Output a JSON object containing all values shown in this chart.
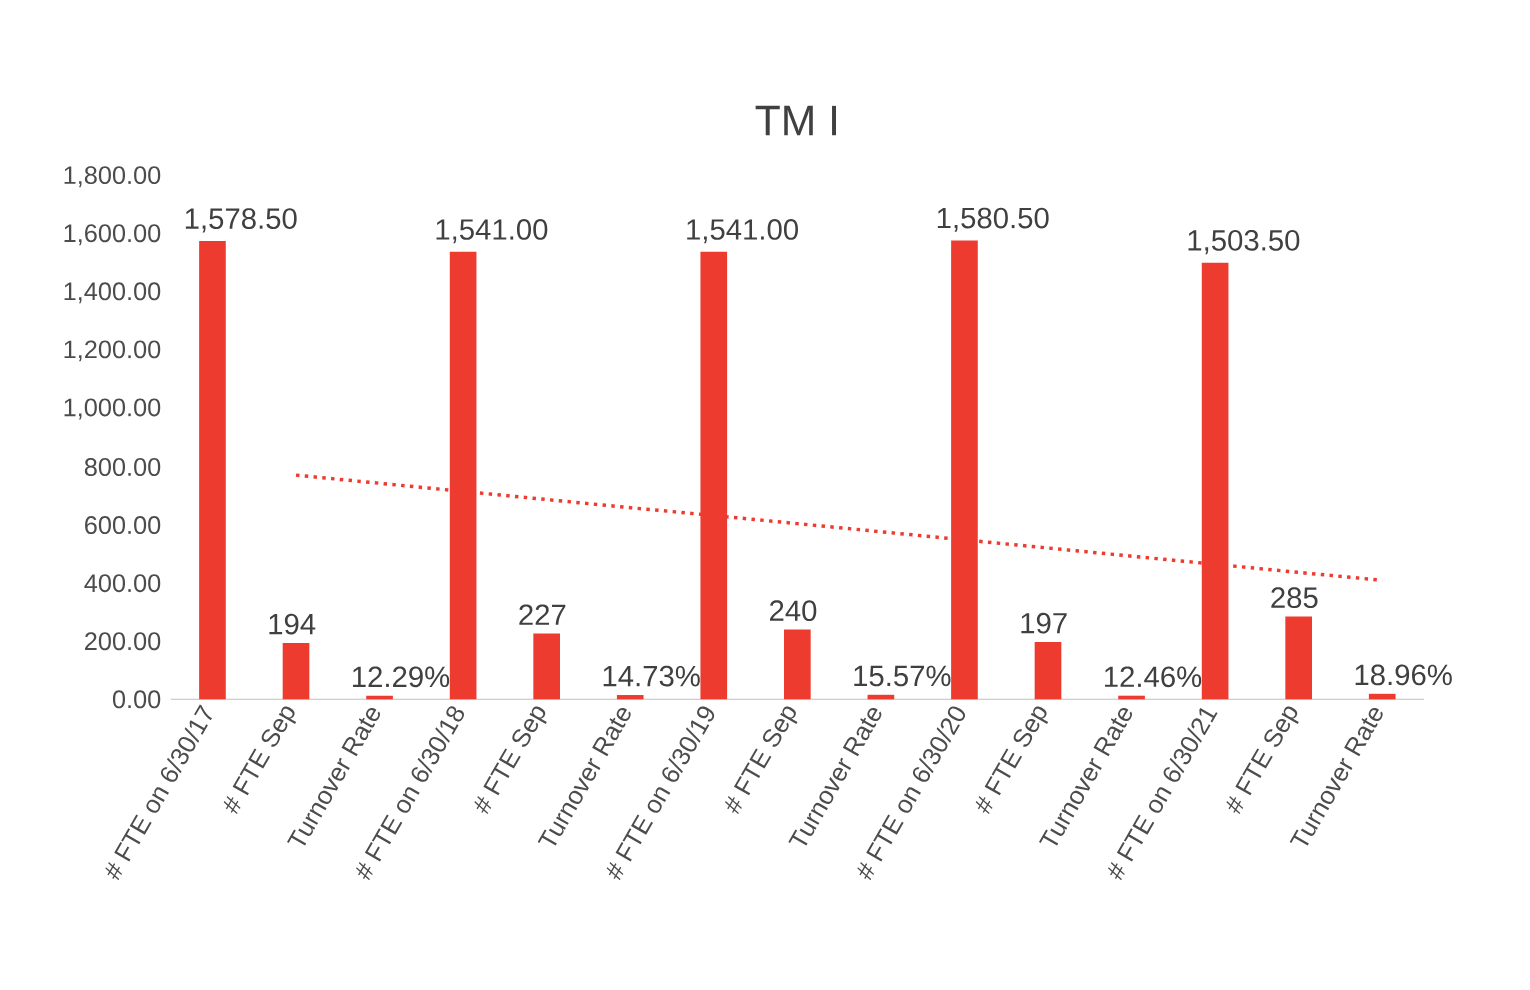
{
  "chart_data": {
    "type": "bar",
    "title": "TM I",
    "categories": [
      "# FTE on 6/30/17",
      "# FTE Sep",
      "Turnover Rate",
      "# FTE on 6/30/18",
      "# FTE Sep",
      "Turnover Rate",
      "# FTE on 6/30/19",
      "# FTE Sep",
      "Turnover Rate",
      "# FTE on 6/30/20",
      "# FTE Sep",
      "Turnover Rate",
      "# FTE on 6/30/21",
      "# FTE Sep",
      "Turnover Rate"
    ],
    "series": [
      {
        "color": "#ee3b30",
        "values": [
          1578.5,
          194,
          12.29,
          1541,
          227,
          14.73,
          1541,
          240,
          15.57,
          1580.5,
          197,
          12.46,
          1503.5,
          285,
          18.96
        ],
        "value_labels": [
          "1,578.50",
          "194",
          "12.29%",
          "1,541.00",
          "227",
          "14.73%",
          "1,541.00",
          "240",
          "15.57%",
          "1,580.50",
          "197",
          "12.46%",
          "1,503.50",
          "285",
          "18.96%"
        ]
      },
      {
        "type": "line",
        "color": "#ee3b30",
        "line_style": "dotted",
        "values": [
          null,
          772,
          744,
          716,
          688,
          660,
          633,
          605,
          577,
          549,
          521,
          493,
          465,
          437,
          410
        ]
      }
    ],
    "ylim": [
      0,
      1800
    ],
    "yticks": [
      {
        "value": 0,
        "label": "0.00"
      },
      {
        "value": 200,
        "label": "200.00"
      },
      {
        "value": 400,
        "label": "400.00"
      },
      {
        "value": 600,
        "label": "600.00"
      },
      {
        "value": 800,
        "label": "800.00"
      },
      {
        "value": 1000,
        "label": "1,000.00"
      },
      {
        "value": 1200,
        "label": "1,200.00"
      },
      {
        "value": 1400,
        "label": "1,400.00"
      },
      {
        "value": 1600,
        "label": "1,600.00"
      },
      {
        "value": 1800,
        "label": "1,800.00"
      }
    ],
    "grid": false
  }
}
